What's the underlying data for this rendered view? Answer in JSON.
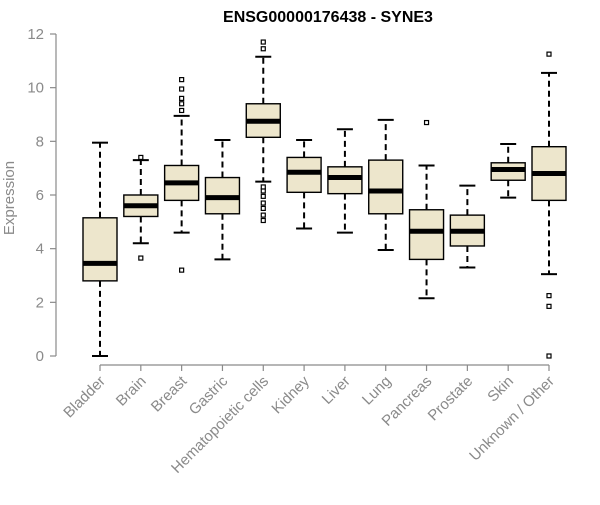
{
  "chart_data": {
    "type": "boxplot",
    "title": "ENSG00000176438 - SYNE3",
    "xlabel": "",
    "ylabel": "Expression",
    "ylim": [
      0,
      12
    ],
    "yticks": [
      0,
      2,
      4,
      6,
      8,
      10,
      12
    ],
    "colors": {
      "box_fill": "#ede6cc",
      "stroke": "#000000",
      "axis": "#8a8a8a",
      "text": "#8a8a8a"
    },
    "categories": [
      "Bladder",
      "Brain",
      "Breast",
      "Gastric",
      "Hematopoietic cells",
      "Kidney",
      "Liver",
      "Lung",
      "Pancreas",
      "Prostate",
      "Skin",
      "Unknown / Other"
    ],
    "boxes": [
      {
        "name": "Bladder",
        "min": 0.0,
        "q1": 2.8,
        "median": 3.45,
        "q3": 5.15,
        "max": 7.95,
        "outliers": []
      },
      {
        "name": "Brain",
        "min": 4.2,
        "q1": 5.2,
        "median": 5.6,
        "q3": 6.0,
        "max": 7.3,
        "outliers": [
          3.65,
          7.4
        ]
      },
      {
        "name": "Breast",
        "min": 4.6,
        "q1": 5.8,
        "median": 6.45,
        "q3": 7.1,
        "max": 8.95,
        "outliers": [
          3.2,
          9.15,
          9.4,
          9.6,
          9.95,
          10.3
        ]
      },
      {
        "name": "Gastric",
        "min": 3.6,
        "q1": 5.3,
        "median": 5.9,
        "q3": 6.65,
        "max": 8.05,
        "outliers": []
      },
      {
        "name": "Hematopoietic cells",
        "min": 6.5,
        "q1": 8.15,
        "median": 8.75,
        "q3": 9.4,
        "max": 11.15,
        "outliers": [
          5.05,
          5.25,
          5.5,
          5.7,
          5.95,
          6.15,
          6.3,
          11.45,
          11.7
        ]
      },
      {
        "name": "Kidney",
        "min": 4.75,
        "q1": 6.1,
        "median": 6.85,
        "q3": 7.4,
        "max": 8.05,
        "outliers": []
      },
      {
        "name": "Liver",
        "min": 4.6,
        "q1": 6.05,
        "median": 6.65,
        "q3": 7.05,
        "max": 8.45,
        "outliers": []
      },
      {
        "name": "Lung",
        "min": 3.95,
        "q1": 5.3,
        "median": 6.15,
        "q3": 7.3,
        "max": 8.8,
        "outliers": []
      },
      {
        "name": "Pancreas",
        "min": 2.15,
        "q1": 3.6,
        "median": 4.65,
        "q3": 5.45,
        "max": 7.1,
        "outliers": [
          8.7
        ]
      },
      {
        "name": "Prostate",
        "min": 3.3,
        "q1": 4.1,
        "median": 4.65,
        "q3": 5.25,
        "max": 6.35,
        "outliers": []
      },
      {
        "name": "Skin",
        "min": 5.9,
        "q1": 6.55,
        "median": 6.95,
        "q3": 7.2,
        "max": 7.9,
        "outliers": []
      },
      {
        "name": "Unknown / Other",
        "min": 3.05,
        "q1": 5.8,
        "median": 6.8,
        "q3": 7.8,
        "max": 10.55,
        "outliers": [
          0.0,
          1.85,
          2.25,
          11.25
        ]
      }
    ]
  }
}
